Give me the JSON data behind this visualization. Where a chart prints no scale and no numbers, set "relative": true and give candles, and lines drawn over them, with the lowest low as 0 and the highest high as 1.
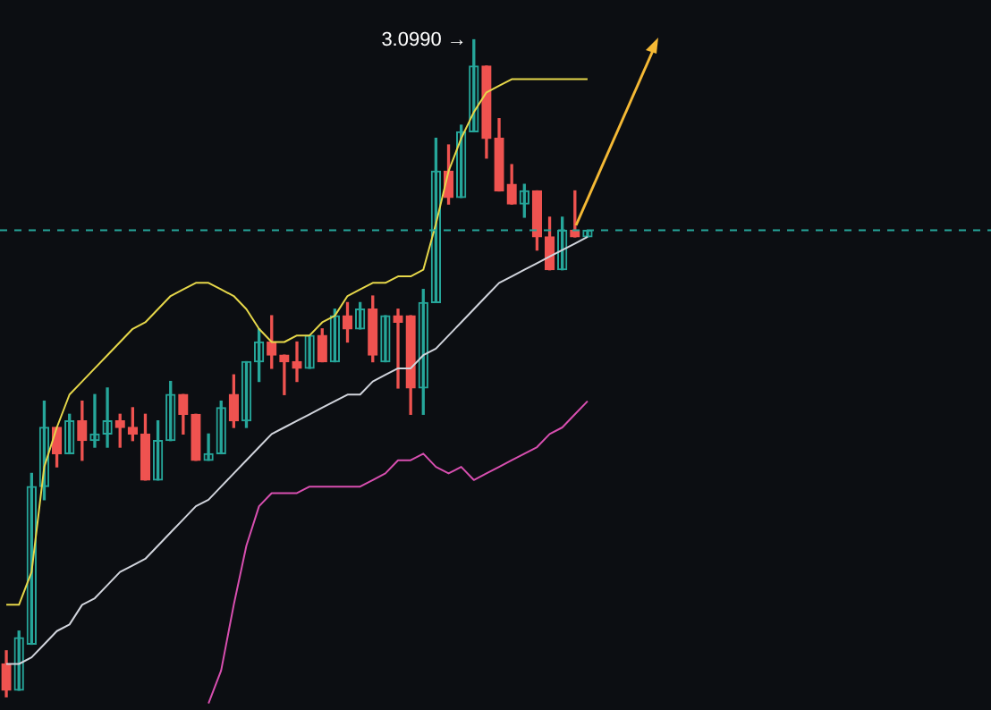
{
  "chart_data": {
    "type": "candlestick",
    "relative": true,
    "categories": [
      null,
      null,
      null,
      null,
      null,
      null,
      null,
      null,
      null,
      null,
      null,
      null,
      null,
      null,
      null,
      null,
      null,
      null,
      null,
      null,
      null,
      null,
      null,
      null,
      null,
      null,
      null,
      null,
      null,
      null,
      null,
      null,
      null,
      null,
      null,
      null,
      null,
      null,
      null,
      null,
      null,
      null,
      null,
      null,
      null,
      null,
      null
    ],
    "ohlc": [
      [
        0.05,
        0.07,
        0,
        0.01
      ],
      [
        0.01,
        0.1,
        0.01,
        0.09
      ],
      [
        0.08,
        0.34,
        0.08,
        0.32
      ],
      [
        0.32,
        0.45,
        0.3,
        0.41
      ],
      [
        0.41,
        0.41,
        0.35,
        0.37
      ],
      [
        0.37,
        0.43,
        0.37,
        0.42
      ],
      [
        0.42,
        0.45,
        0.36,
        0.39
      ],
      [
        0.39,
        0.46,
        0.38,
        0.4
      ],
      [
        0.4,
        0.47,
        0.38,
        0.42
      ],
      [
        0.42,
        0.43,
        0.38,
        0.41
      ],
      [
        0.41,
        0.44,
        0.39,
        0.4
      ],
      [
        0.4,
        0.43,
        0.33,
        0.33
      ],
      [
        0.33,
        0.42,
        0.33,
        0.39
      ],
      [
        0.39,
        0.48,
        0.39,
        0.46
      ],
      [
        0.46,
        0.46,
        0.4,
        0.43
      ],
      [
        0.43,
        0.43,
        0.36,
        0.36
      ],
      [
        0.36,
        0.4,
        0.36,
        0.37
      ],
      [
        0.37,
        0.45,
        0.37,
        0.44
      ],
      [
        0.46,
        0.49,
        0.41,
        0.42
      ],
      [
        0.42,
        0.51,
        0.41,
        0.51
      ],
      [
        0.51,
        0.56,
        0.48,
        0.54
      ],
      [
        0.54,
        0.58,
        0.5,
        0.52
      ],
      [
        0.52,
        0.52,
        0.46,
        0.51
      ],
      [
        0.51,
        0.54,
        0.48,
        0.5
      ],
      [
        0.5,
        0.55,
        0.5,
        0.55
      ],
      [
        0.55,
        0.56,
        0.51,
        0.51
      ],
      [
        0.51,
        0.59,
        0.51,
        0.58
      ],
      [
        0.58,
        0.6,
        0.54,
        0.56
      ],
      [
        0.56,
        0.6,
        0.56,
        0.59
      ],
      [
        0.59,
        0.61,
        0.51,
        0.52
      ],
      [
        0.51,
        0.58,
        0.51,
        0.58
      ],
      [
        0.58,
        0.59,
        0.47,
        0.57
      ],
      [
        0.58,
        0.58,
        0.43,
        0.47
      ],
      [
        0.47,
        0.62,
        0.43,
        0.6
      ],
      [
        0.6,
        0.85,
        0.6,
        0.8
      ],
      [
        0.8,
        0.84,
        0.75,
        0.76
      ],
      [
        0.76,
        0.87,
        0.76,
        0.86
      ],
      [
        0.86,
        1,
        0.86,
        0.96
      ],
      [
        0.96,
        0.96,
        0.82,
        0.85
      ],
      [
        0.85,
        0.88,
        0.77,
        0.77
      ],
      [
        0.78,
        0.81,
        0.75,
        0.75
      ],
      [
        0.75,
        0.78,
        0.73,
        0.77
      ],
      [
        0.77,
        0.77,
        0.68,
        0.7
      ],
      [
        0.7,
        0.73,
        0.65,
        0.65
      ],
      [
        0.65,
        0.73,
        0.65,
        0.71
      ],
      [
        0.71,
        0.77,
        0.7,
        0.7
      ],
      [
        0.7,
        0.71,
        0.7,
        0.71
      ]
    ],
    "series": [
      {
        "type": "line",
        "color": "#e6d74a",
        "values": [
          0.14,
          0.14,
          0.19,
          0.35,
          0.41,
          0.46,
          0.48,
          0.5,
          0.52,
          0.54,
          0.56,
          0.57,
          0.59,
          0.61,
          0.62,
          0.63,
          0.63,
          0.62,
          0.61,
          0.59,
          0.56,
          0.54,
          0.54,
          0.55,
          0.55,
          0.57,
          0.58,
          0.61,
          0.62,
          0.63,
          0.63,
          0.64,
          0.64,
          0.65,
          0.72,
          0.8,
          0.85,
          0.89,
          0.92,
          0.93,
          0.94,
          0.94,
          0.94,
          0.94,
          0.94,
          0.94,
          0.94
        ]
      },
      {
        "type": "line",
        "color": "#d1d4dc",
        "values": [
          0.05,
          0.05,
          0.06,
          0.08,
          0.1,
          0.11,
          0.14,
          0.15,
          0.17,
          0.19,
          0.2,
          0.21,
          0.23,
          0.25,
          0.27,
          0.29,
          0.3,
          0.32,
          0.34,
          0.36,
          0.38,
          0.4,
          0.41,
          0.42,
          0.43,
          0.44,
          0.45,
          0.46,
          0.46,
          0.48,
          0.49,
          0.5,
          0.5,
          0.52,
          0.53,
          0.55,
          0.57,
          0.59,
          0.61,
          0.63,
          0.64,
          0.65,
          0.66,
          0.67,
          0.68,
          0.69,
          0.7
        ]
      },
      {
        "type": "line",
        "color": "#d84fb0",
        "values": [
          null,
          null,
          null,
          null,
          null,
          null,
          null,
          null,
          null,
          null,
          null,
          null,
          null,
          null,
          null,
          null,
          -0.01,
          0.04,
          0.14,
          0.23,
          0.29,
          0.31,
          0.31,
          0.31,
          0.32,
          0.32,
          0.32,
          0.32,
          0.32,
          0.33,
          0.34,
          0.36,
          0.36,
          0.37,
          0.35,
          0.34,
          0.35,
          0.33,
          0.34,
          0.35,
          0.36,
          0.37,
          0.38,
          0.4,
          0.41,
          0.43,
          0.45
        ]
      }
    ],
    "ref_lines": [
      {
        "axis": "y",
        "value": 0.71,
        "color": "#26a69a",
        "line_style": "dashed"
      }
    ],
    "annotations": [
      "3.0990 →"
    ]
  }
}
